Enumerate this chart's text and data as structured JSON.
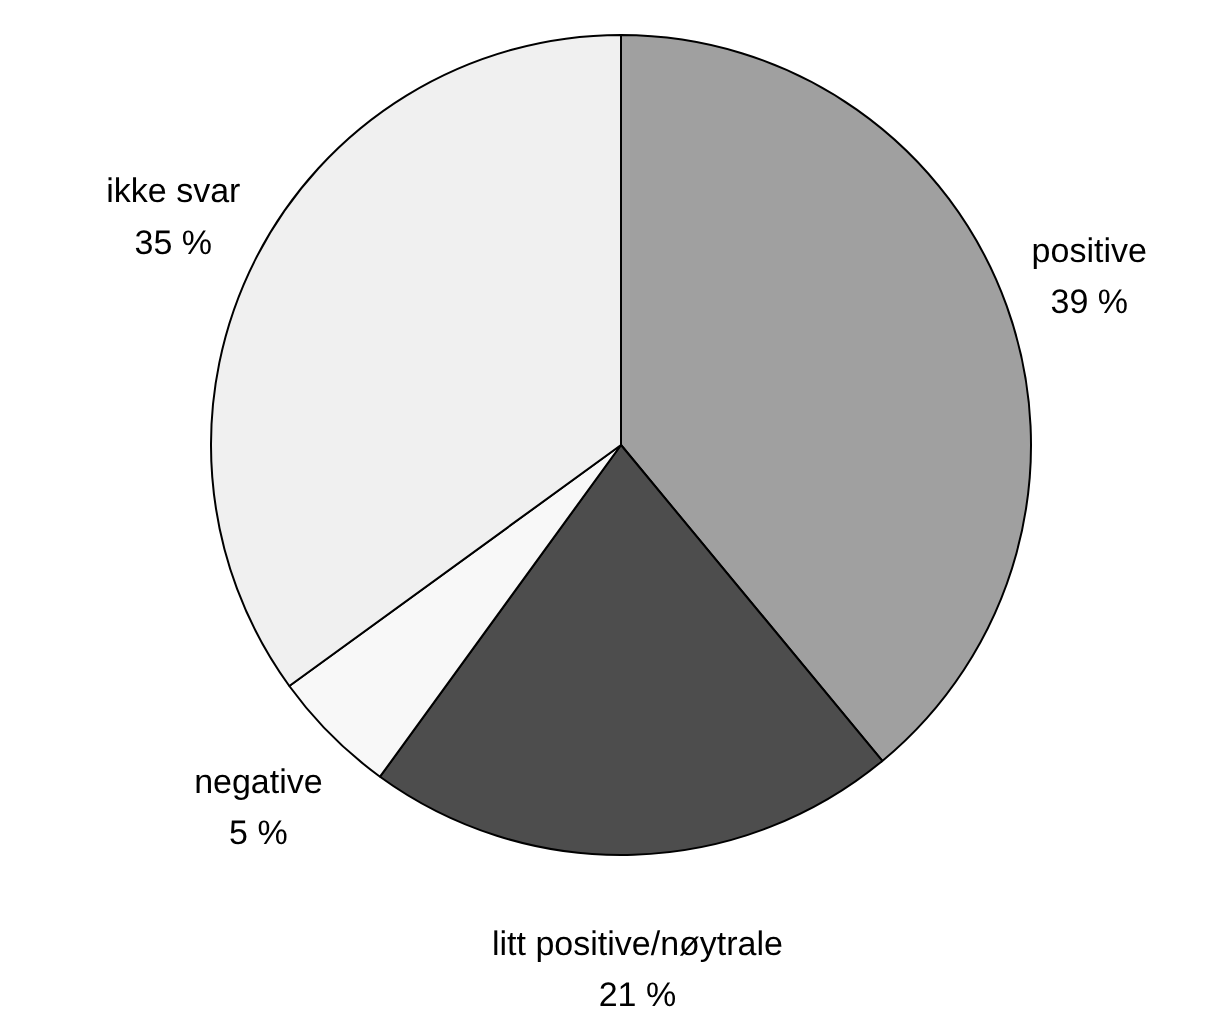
{
  "chart_data": {
    "type": "pie",
    "categories": [
      "positive",
      "litt positive/nøytrale",
      "negative",
      "ikke svar"
    ],
    "values": [
      39,
      21,
      5,
      35
    ],
    "colors": [
      "#a0a0a0",
      "#4d4d4d",
      "#f8f8f8",
      "#f0f0f0"
    ],
    "value_labels": [
      "39 %",
      "21 %",
      "5 %",
      "35 %"
    ]
  }
}
